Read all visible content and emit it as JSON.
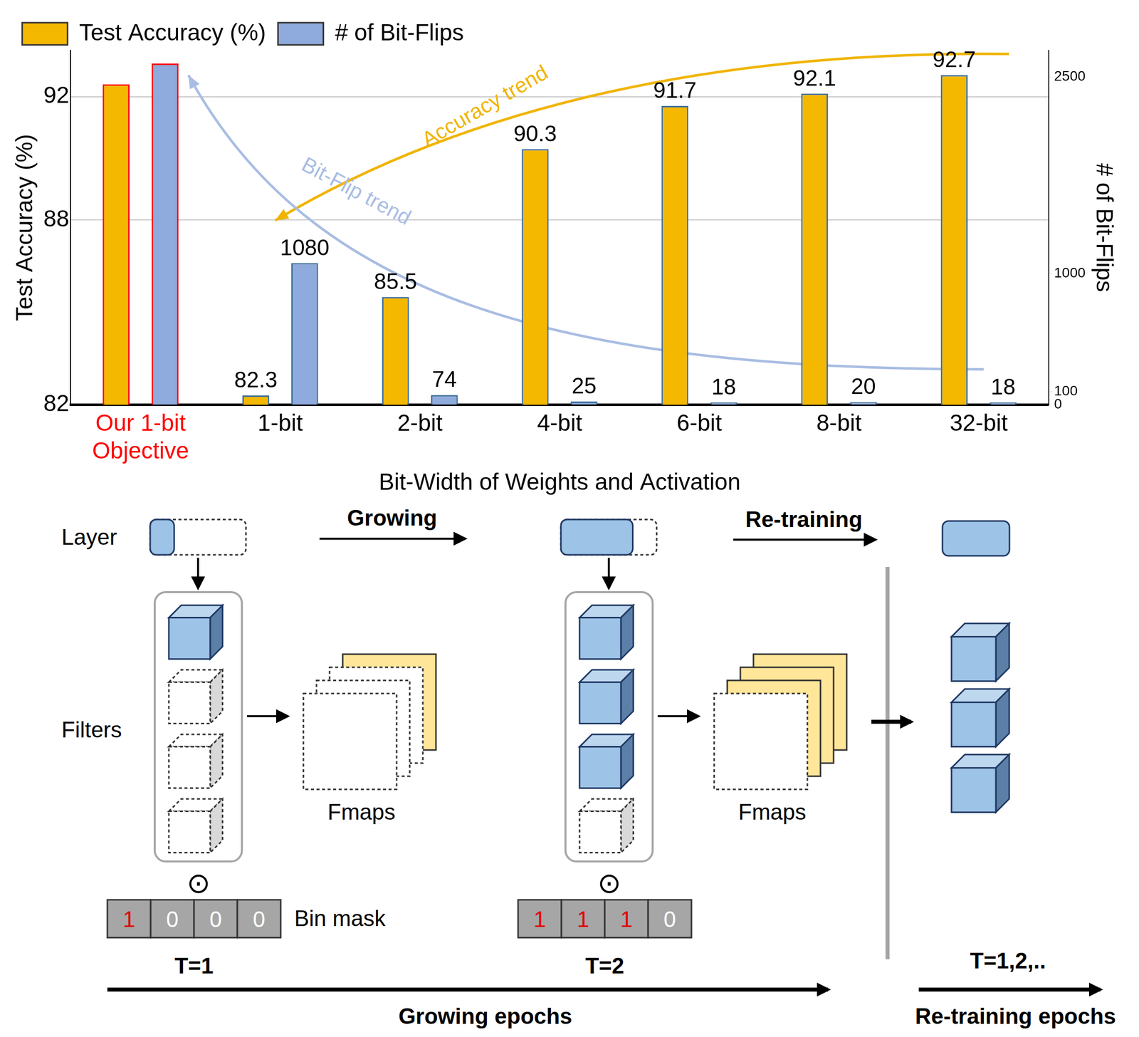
{
  "chart_data": {
    "type": "bar",
    "categories": [
      "Our 1-bit\nObjective",
      "1-bit",
      "2-bit",
      "4-bit",
      "6-bit",
      "8-bit",
      "32-bit"
    ],
    "x_label": "Bit-Width of Weights and Activation",
    "y_label": "Test Accuracy (%)",
    "y2_label": "# of Bit-Flips",
    "ylim": [
      82,
      93.5
    ],
    "yticks": [
      82,
      88,
      92
    ],
    "y2lim": [
      0,
      2700
    ],
    "y2ticks": [
      0,
      100,
      1000,
      2500
    ],
    "grid": true,
    "legend": "top-left",
    "data_labels": true,
    "series": [
      {
        "name": "Test Accuracy (%)",
        "color": "#f5b800",
        "values": [
          92.4,
          82.3,
          85.5,
          90.3,
          91.7,
          92.1,
          92.7
        ],
        "value_labels": [
          null,
          "82.3",
          "85.5",
          "90.3",
          "91.7",
          "92.1",
          "92.7"
        ]
      },
      {
        "name": "# of Bit-Flips",
        "color": "#8faadc",
        "axis": "y2",
        "values": [
          2600,
          1080,
          74,
          25,
          18,
          20,
          18
        ],
        "value_labels": [
          null,
          "1080",
          "74",
          "25",
          "18",
          "20",
          "18"
        ]
      }
    ],
    "annotations": [
      {
        "text": "Accuracy trend",
        "color": "#f0b400"
      },
      {
        "text": "Bit-Flip trend",
        "color": "#a9bde3"
      }
    ]
  },
  "diagram": {
    "layer_label": "Layer",
    "filters_label": "Filters",
    "fmaps_label": "Fmaps",
    "mask_label": "Bin mask",
    "operator": "⊙",
    "stages": [
      {
        "step": "T=1",
        "mask": [
          1,
          0,
          0,
          0
        ]
      },
      {
        "step": "T=2",
        "mask": [
          1,
          1,
          1,
          0
        ]
      }
    ],
    "transitions": [
      "Growing",
      "Re-training"
    ],
    "retraining_step": "T=1,2,..",
    "timelines": [
      "Growing epochs",
      "Re-training epochs"
    ]
  }
}
